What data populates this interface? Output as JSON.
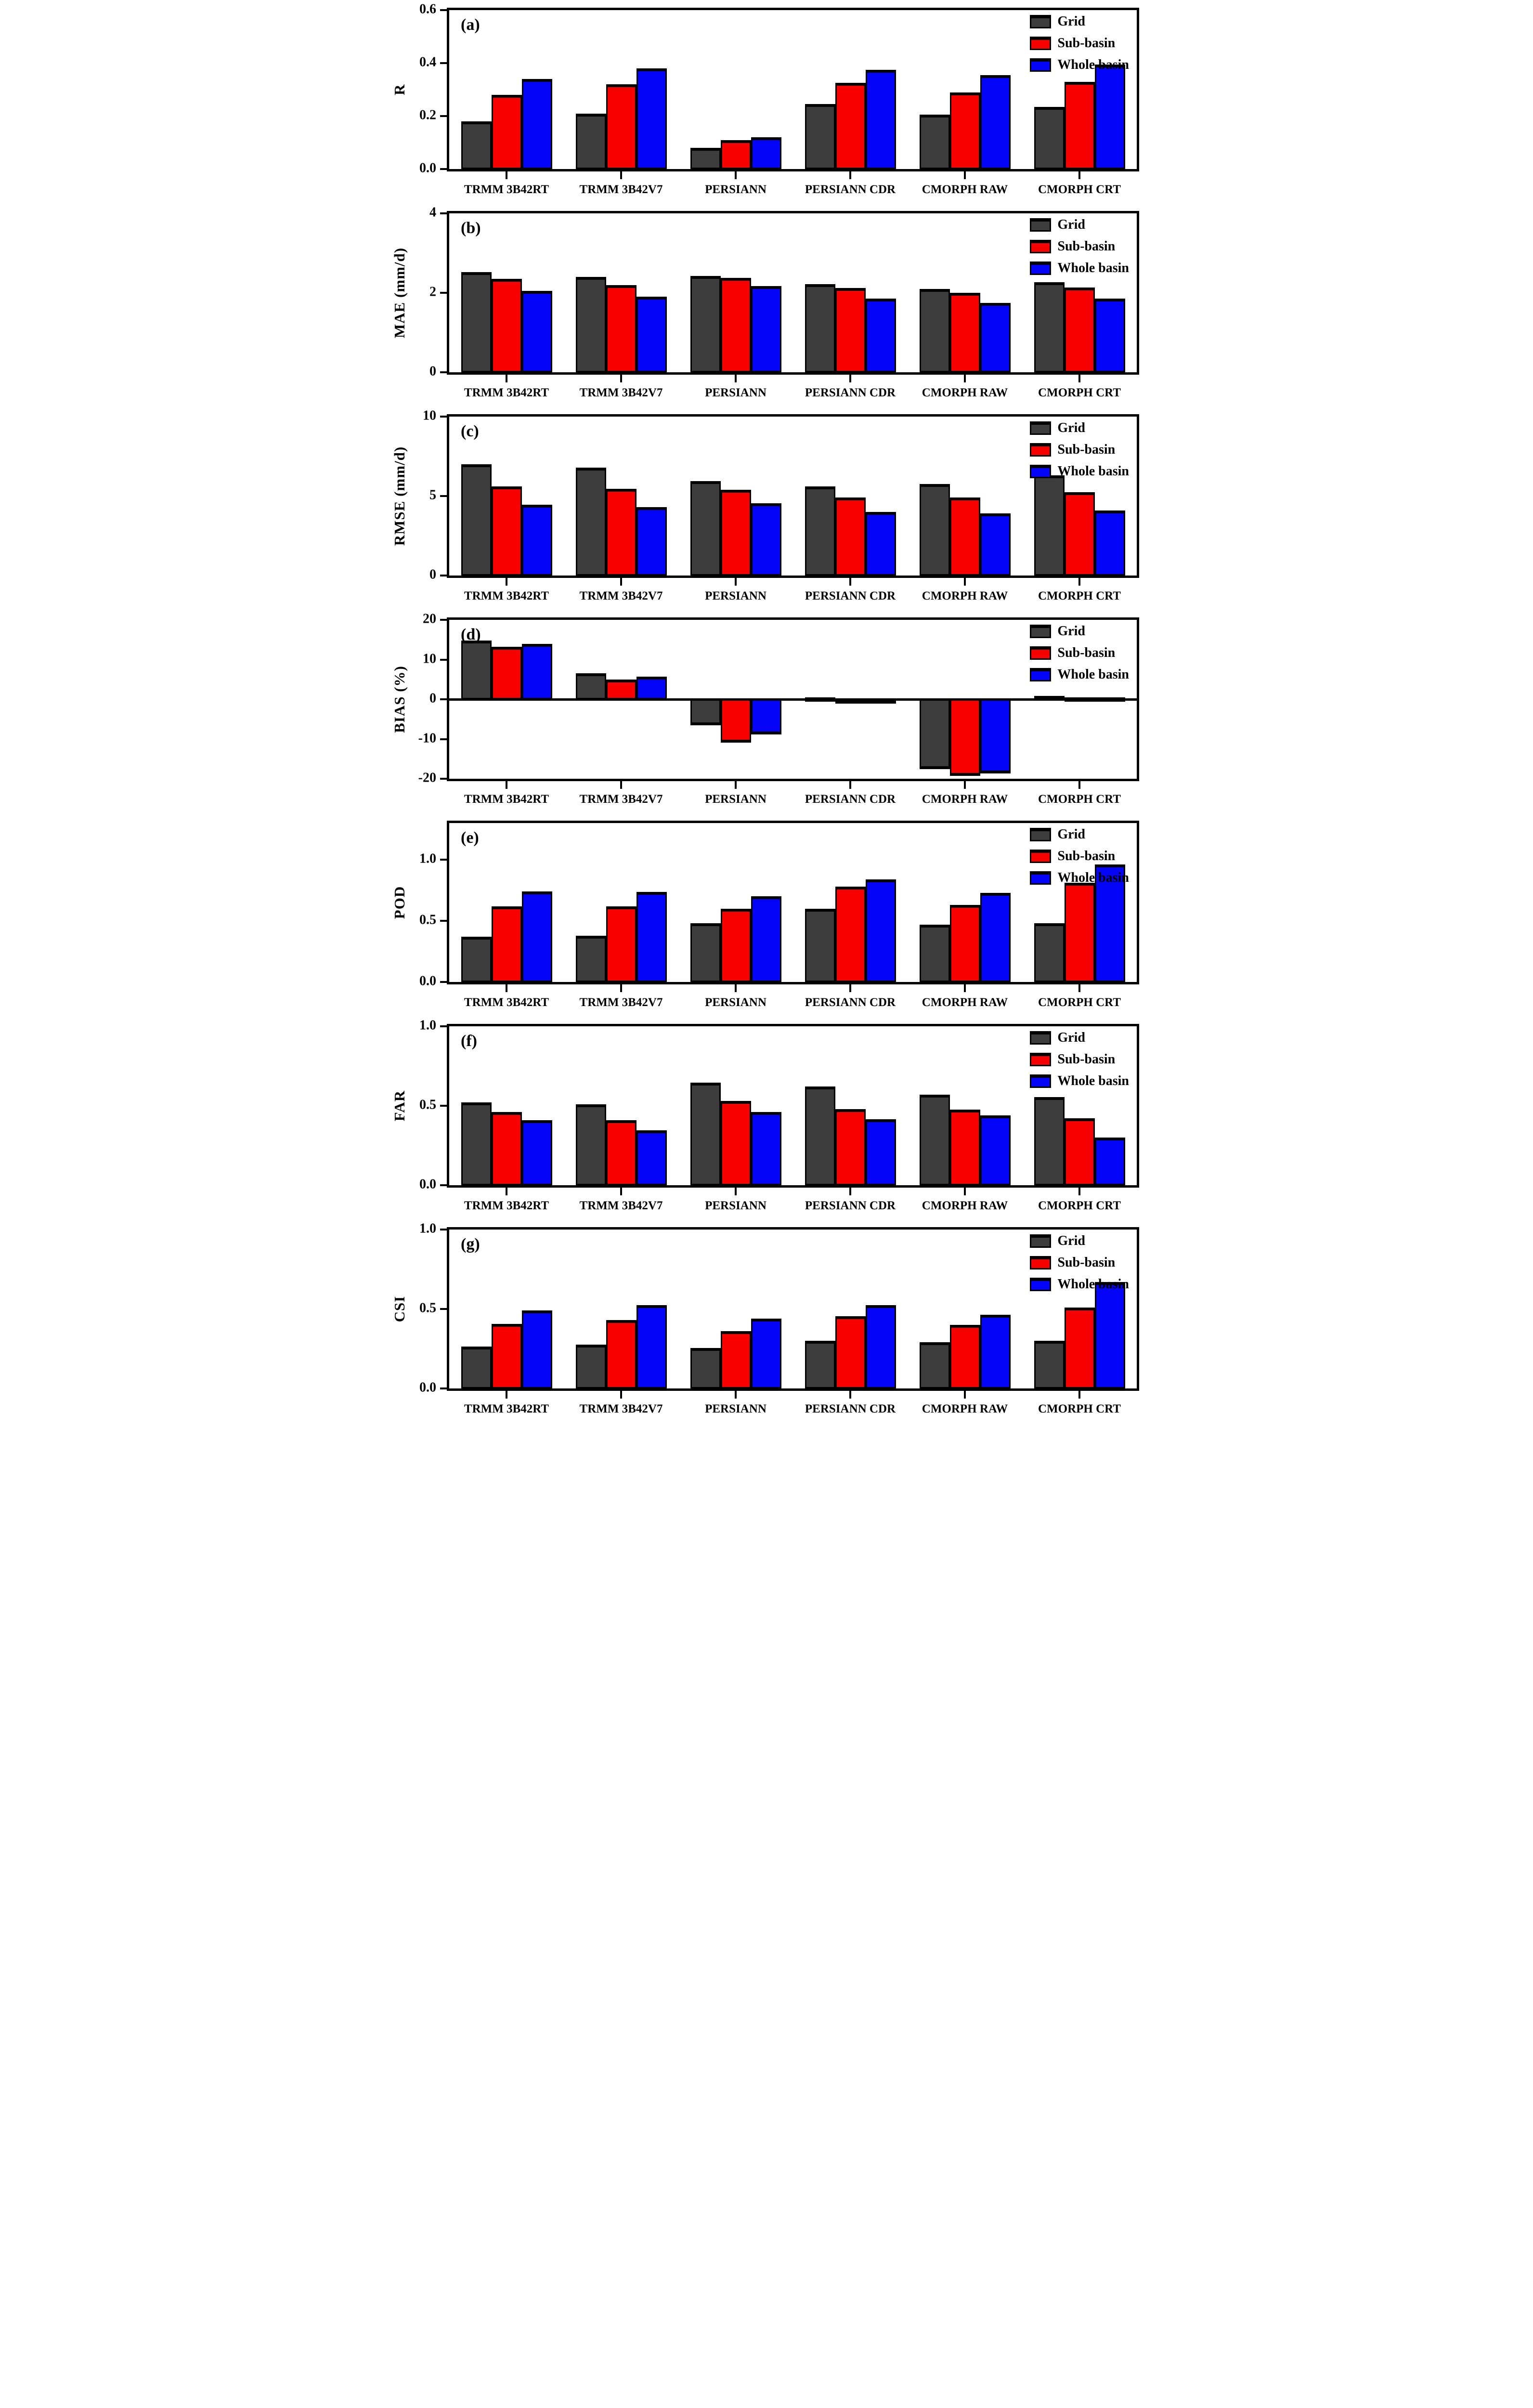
{
  "figure": {
    "background": "#ffffff",
    "bar_outline_color": "#000000",
    "legend_labels": [
      "Grid",
      "Sub-basin",
      "Whole basin"
    ],
    "series_colors": {
      "Grid": "#3d3d3d",
      "Sub-basin": "#f80000",
      "Whole basin": "#0404f8"
    }
  },
  "chart_data": [
    {
      "type": "bar",
      "panel_label": "(a)",
      "ylabel": "R",
      "ylim": [
        0,
        0.6
      ],
      "yticks": [
        0,
        0.2,
        0.4,
        0.6
      ],
      "ytick_labels": [
        "0.0",
        "0.2",
        "0.4",
        "0.6"
      ],
      "grid": false,
      "legend_position": "top-right",
      "categories": [
        "TRMM 3B42RT",
        "TRMM 3B42V7",
        "PERSIANN",
        "PERSIANN CDR",
        "CMORPH RAW",
        "CMORPH CRT"
      ],
      "series": [
        {
          "name": "Grid",
          "values": [
            0.18,
            0.21,
            0.08,
            0.245,
            0.205,
            0.235
          ]
        },
        {
          "name": "Sub-basin",
          "values": [
            0.28,
            0.32,
            0.11,
            0.325,
            0.29,
            0.33
          ]
        },
        {
          "name": "Whole basin",
          "values": [
            0.34,
            0.38,
            0.12,
            0.375,
            0.355,
            0.395
          ]
        }
      ]
    },
    {
      "type": "bar",
      "panel_label": "(b)",
      "ylabel": "MAE (mm/d)",
      "ylim": [
        0,
        4
      ],
      "yticks": [
        0,
        2,
        4
      ],
      "ytick_labels": [
        "0",
        "2",
        "4"
      ],
      "grid": false,
      "legend_position": "top-right",
      "categories": [
        "TRMM 3B42RT",
        "TRMM 3B42V7",
        "PERSIANN",
        "PERSIANN CDR",
        "CMORPH RAW",
        "CMORPH CRT"
      ],
      "series": [
        {
          "name": "Grid",
          "values": [
            2.52,
            2.4,
            2.42,
            2.22,
            2.1,
            2.27
          ]
        },
        {
          "name": "Sub-basin",
          "values": [
            2.35,
            2.2,
            2.37,
            2.12,
            2.0,
            2.13
          ]
        },
        {
          "name": "Whole basin",
          "values": [
            2.05,
            1.9,
            2.17,
            1.85,
            1.75,
            1.85
          ]
        }
      ]
    },
    {
      "type": "bar",
      "panel_label": "(c)",
      "ylabel": "RMSE (mm/d)",
      "ylim": [
        0,
        10
      ],
      "yticks": [
        0,
        5,
        10
      ],
      "ytick_labels": [
        "0",
        "5",
        "10"
      ],
      "grid": false,
      "legend_position": "top-right",
      "categories": [
        "TRMM 3B42RT",
        "TRMM 3B42V7",
        "PERSIANN",
        "PERSIANN CDR",
        "CMORPH RAW",
        "CMORPH CRT"
      ],
      "series": [
        {
          "name": "Grid",
          "values": [
            7.0,
            6.8,
            5.95,
            5.6,
            5.75,
            6.3
          ]
        },
        {
          "name": "Sub-basin",
          "values": [
            5.6,
            5.45,
            5.4,
            4.9,
            4.9,
            5.25
          ]
        },
        {
          "name": "Whole basin",
          "values": [
            4.45,
            4.3,
            4.55,
            4.0,
            3.9,
            4.1
          ]
        }
      ]
    },
    {
      "type": "bar",
      "panel_label": "(d)",
      "ylabel": "BIAS (%)",
      "ylim": [
        -20,
        20
      ],
      "yticks": [
        -20,
        -10,
        0,
        10,
        20
      ],
      "ytick_labels": [
        "-20",
        "-10",
        "0",
        "10",
        "20"
      ],
      "grid": false,
      "legend_position": "top-right",
      "categories": [
        "TRMM 3B42RT",
        "TRMM 3B42V7",
        "PERSIANN",
        "PERSIANN CDR",
        "CMORPH RAW",
        "CMORPH CRT"
      ],
      "series": [
        {
          "name": "Grid",
          "values": [
            14.8,
            6.5,
            -6.6,
            0.2,
            -17.6,
            0.9
          ]
        },
        {
          "name": "Sub-basin",
          "values": [
            13.2,
            5.0,
            -10.9,
            -0.1,
            -19.3,
            0.1
          ]
        },
        {
          "name": "Whole basin",
          "values": [
            13.9,
            5.7,
            -8.9,
            -0.7,
            -18.7,
            0.35
          ]
        }
      ]
    },
    {
      "type": "bar",
      "panel_label": "(e)",
      "ylabel": "POD",
      "ylim": [
        0,
        1.3
      ],
      "yticks": [
        0,
        0.5,
        1.0
      ],
      "ytick_labels": [
        "0.0",
        "0.5",
        "1.0"
      ],
      "grid": false,
      "legend_position": "top-right",
      "categories": [
        "TRMM 3B42RT",
        "TRMM 3B42V7",
        "PERSIANN",
        "PERSIANN CDR",
        "CMORPH RAW",
        "CMORPH CRT"
      ],
      "series": [
        {
          "name": "Grid",
          "values": [
            0.37,
            0.38,
            0.48,
            0.6,
            0.47,
            0.48
          ]
        },
        {
          "name": "Sub-basin",
          "values": [
            0.62,
            0.62,
            0.6,
            0.78,
            0.63,
            0.81
          ]
        },
        {
          "name": "Whole basin",
          "values": [
            0.74,
            0.735,
            0.7,
            0.84,
            0.73,
            0.96
          ]
        }
      ]
    },
    {
      "type": "bar",
      "panel_label": "(f)",
      "ylabel": "FAR",
      "ylim": [
        0,
        1.0
      ],
      "yticks": [
        0,
        0.5,
        1.0
      ],
      "ytick_labels": [
        "0.0",
        "0.5",
        "1.0"
      ],
      "grid": false,
      "legend_position": "top-right",
      "categories": [
        "TRMM 3B42RT",
        "TRMM 3B42V7",
        "PERSIANN",
        "PERSIANN CDR",
        "CMORPH RAW",
        "CMORPH CRT"
      ],
      "series": [
        {
          "name": "Grid",
          "values": [
            0.52,
            0.51,
            0.645,
            0.62,
            0.57,
            0.555
          ]
        },
        {
          "name": "Sub-basin",
          "values": [
            0.46,
            0.41,
            0.53,
            0.48,
            0.475,
            0.42
          ]
        },
        {
          "name": "Whole basin",
          "values": [
            0.41,
            0.345,
            0.46,
            0.415,
            0.44,
            0.3
          ]
        }
      ]
    },
    {
      "type": "bar",
      "panel_label": "(g)",
      "ylabel": "CSI",
      "ylim": [
        0,
        1.0
      ],
      "yticks": [
        0,
        0.5,
        1.0
      ],
      "ytick_labels": [
        "0.0",
        "0.5",
        "1.0"
      ],
      "grid": false,
      "legend_position": "top-right",
      "categories": [
        "TRMM 3B42RT",
        "TRMM 3B42V7",
        "PERSIANN",
        "PERSIANN CDR",
        "CMORPH RAW",
        "CMORPH CRT"
      ],
      "series": [
        {
          "name": "Grid",
          "values": [
            0.265,
            0.275,
            0.255,
            0.3,
            0.29,
            0.3
          ]
        },
        {
          "name": "Sub-basin",
          "values": [
            0.405,
            0.43,
            0.36,
            0.455,
            0.4,
            0.51
          ]
        },
        {
          "name": "Whole basin",
          "values": [
            0.49,
            0.525,
            0.44,
            0.525,
            0.465,
            0.67
          ]
        }
      ]
    }
  ]
}
